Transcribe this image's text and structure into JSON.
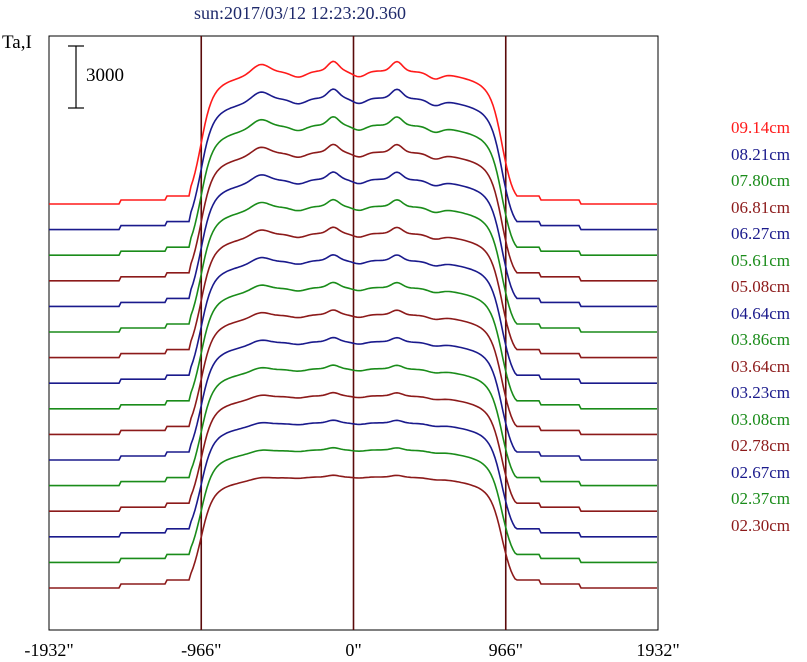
{
  "title": "sun:2017/03/12 12:23:20.360",
  "chart_data": {
    "type": "line",
    "title": "sun:2017/03/12 12:23:20.360",
    "ylabel": "Ta,I",
    "xlabel": "",
    "scale_bar_label": "3000",
    "x_ticks": [
      "-1932\"",
      "-966\"",
      "0\"",
      "966\"",
      "1932\""
    ],
    "x_tick_values": [
      -1932,
      -966,
      0,
      966,
      1932
    ],
    "xlim": [
      -1932,
      1932
    ],
    "vertical_lines_at": [
      -966,
      0,
      966
    ],
    "grid": false,
    "legend_placement": "right",
    "series": [
      {
        "name": "09.14cm",
        "color": "#ff1a1a"
      },
      {
        "name": "08.21cm",
        "color": "#1a1a8c"
      },
      {
        "name": "07.80cm",
        "color": "#1a8c1a"
      },
      {
        "name": "06.81cm",
        "color": "#8c1a1a"
      },
      {
        "name": "06.27cm",
        "color": "#1a1a8c"
      },
      {
        "name": "05.61cm",
        "color": "#1a8c1a"
      },
      {
        "name": "05.08cm",
        "color": "#8c1a1a"
      },
      {
        "name": "04.64cm",
        "color": "#1a1a8c"
      },
      {
        "name": "03.86cm",
        "color": "#1a8c1a"
      },
      {
        "name": "03.64cm",
        "color": "#8c1a1a"
      },
      {
        "name": "03.23cm",
        "color": "#1a1a8c"
      },
      {
        "name": "03.08cm",
        "color": "#1a8c1a"
      },
      {
        "name": "02.78cm",
        "color": "#8c1a1a"
      },
      {
        "name": "02.67cm",
        "color": "#1a1a8c"
      },
      {
        "name": "02.37cm",
        "color": "#1a8c1a"
      },
      {
        "name": "02.30cm",
        "color": "#8c1a1a"
      }
    ]
  }
}
